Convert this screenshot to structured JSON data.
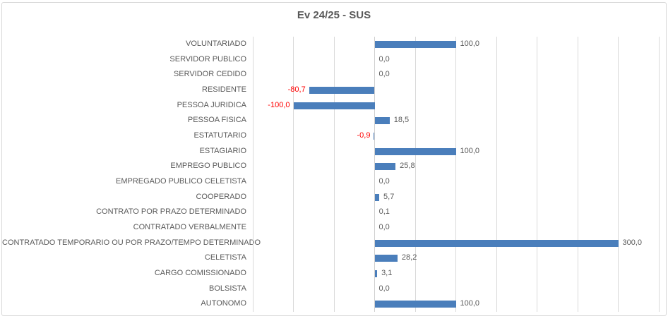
{
  "chart_data": {
    "type": "bar",
    "orientation": "horizontal",
    "title": "Ev 24/25 - SUS",
    "xlabel": "",
    "ylabel": "",
    "xlim": [
      -150,
      350
    ],
    "grid_step": 50,
    "grid_on": true,
    "legend": "none",
    "bar_color": "#4a7ebb",
    "label_color": "#595959",
    "negative_label_color": "#ff0000",
    "categories": [
      "VOLUNTARIADO",
      "SERVIDOR PUBLICO",
      "SERVIDOR CEDIDO",
      "RESIDENTE",
      "PESSOA JURIDICA",
      "PESSOA FISICA",
      "ESTATUTARIO",
      "ESTAGIARIO",
      "EMPREGO PUBLICO",
      "EMPREGADO PUBLICO CELETISTA",
      "COOPERADO",
      "CONTRATO POR PRAZO DETERMINADO",
      "CONTRATADO VERBALMENTE",
      "CONTRATADO TEMPORARIO OU POR PRAZO/TEMPO DETERMINADO",
      "CELETISTA",
      "CARGO COMISSIONADO",
      "BOLSISTA",
      "AUTONOMO"
    ],
    "values": [
      100.0,
      0.0,
      0.0,
      -80.7,
      -100.0,
      18.5,
      -0.9,
      100.0,
      25.8,
      0.0,
      5.7,
      0.1,
      0.0,
      300.0,
      28.2,
      3.1,
      0.0,
      100.0
    ],
    "labels": [
      "100,0",
      "0,0",
      "0,0",
      "-80,7",
      "-100,0",
      "18,5",
      "-0,9",
      "100,0",
      "25,8",
      "0,0",
      "5,7",
      "0,1",
      "0,0",
      "300,0",
      "28,2",
      "3,1",
      "0,0",
      "100,0"
    ]
  }
}
